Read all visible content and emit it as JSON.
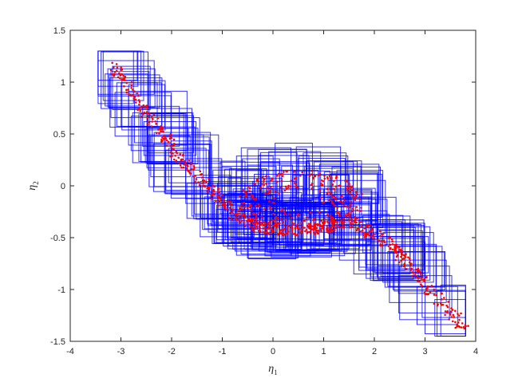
{
  "chart_data": {
    "type": "scatter",
    "title": "",
    "xlabel": {
      "base": "η",
      "sub": "1"
    },
    "ylabel": {
      "base": "η",
      "sub": "2"
    },
    "xlim": [
      -4,
      4
    ],
    "ylim": [
      -1.5,
      1.5
    ],
    "xticks": [
      -4,
      -3,
      -2,
      -1,
      0,
      1,
      2,
      3,
      4
    ],
    "yticks": [
      -1.5,
      -1,
      -0.5,
      0,
      0.5,
      1,
      1.5
    ],
    "xtick_labels": [
      "-4",
      "-3",
      "-2",
      "-1",
      "0",
      "1",
      "2",
      "3",
      "4"
    ],
    "ytick_labels": [
      "-1.5",
      "-1",
      "-0.5",
      "0",
      "0.5",
      "1",
      "1.5"
    ],
    "grid": false,
    "legend": "none",
    "series": [
      {
        "kind": "rectangles",
        "color": "#0000ff",
        "count_approx": 220,
        "half_width_x": [
          0.35,
          0.6
        ],
        "half_height_y": [
          0.15,
          0.28
        ],
        "centered_on": "points"
      },
      {
        "kind": "points",
        "color": "#ff0000",
        "count_approx": 900,
        "s_curve": [
          [
            -3.15,
            1.15
          ],
          [
            -2.5,
            0.7
          ],
          [
            -1.8,
            0.25
          ],
          [
            -1.2,
            -0.05
          ],
          [
            -0.6,
            -0.35
          ],
          [
            0.0,
            -0.42
          ],
          [
            0.8,
            -0.42
          ],
          [
            1.6,
            -0.35
          ],
          [
            2.4,
            -0.6
          ],
          [
            3.0,
            -0.95
          ],
          [
            3.8,
            -1.38
          ]
        ],
        "loop_center": [
          0.55,
          -0.15
        ],
        "loop_radius": [
          1.25,
          0.3
        ]
      }
    ]
  }
}
